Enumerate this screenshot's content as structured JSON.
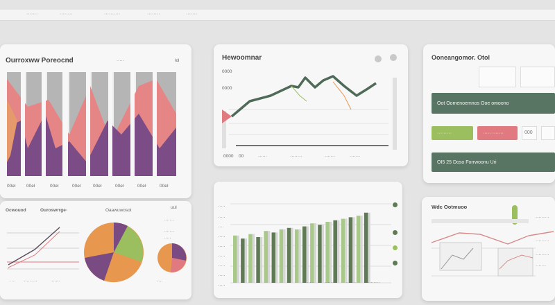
{
  "topbar": {
    "items": [
      "·······",
      "········",
      "··········",
      "········",
      "·······"
    ]
  },
  "panel_a": {
    "title": "Ourroxww Poreocnd",
    "meta": "·····",
    "meta2": "lol",
    "categories": [
      "00eI",
      "00el",
      "00eI",
      "00eI",
      "00eI",
      "00eI",
      "00eI",
      "00eI"
    ],
    "colors": {
      "gray": "#a9a9a9",
      "pink": "#e07a80",
      "purple": "#7a4a82",
      "orange": "#e08a5a"
    }
  },
  "panel_a_bottom": {
    "label_left": "Ocwouod",
    "label_mid": "Ouroswrrge·",
    "label_pie": "Oaawuwosot",
    "side_labels": [
      "uul",
      "·······",
      "·······",
      "·····"
    ],
    "bottom_labels": [
      "·····",
      "·········",
      "······",
      "····"
    ],
    "pie_colors": [
      "#e8974e",
      "#9bbf5e",
      "#7a4a82",
      "#c9c9c9"
    ]
  },
  "panel_b": {
    "title": "Hewoomnar",
    "y_labels": [
      "0000",
      "0000"
    ],
    "x_labels": [
      "0000",
      "00",
      "······",
      "········",
      "·······",
      "·······"
    ],
    "line_color": "#4f6a58",
    "accent": "#e07a80"
  },
  "panel_c": {
    "title": "Ooneangomor. Otol",
    "big_button": "Oot Oomenoemnos   Ooe omoono",
    "green_button": "·········",
    "pink_button": "·····  ·······",
    "small_btn": "000",
    "bottom_button": "OI5 25  Doso Forrwoonu Uri",
    "colors": {
      "dark": "#587563",
      "green": "#9bbf5e",
      "pink": "#e07a80"
    }
  },
  "panel_d": {
    "y_labels": [
      "·····",
      "·····",
      "····",
      "·····",
      "·····",
      "·····",
      "·····",
      "·····",
      "·····",
      "·····"
    ],
    "bars": [
      0.62,
      0.58,
      0.64,
      0.6,
      0.68,
      0.66,
      0.7,
      0.72,
      0.7,
      0.74,
      0.78,
      0.76,
      0.8,
      0.82,
      0.84,
      0.86,
      0.88,
      0.92
    ],
    "dots": [
      "#5f7a55",
      "#5f7a55",
      "#9bbf5e",
      "#5f7a55"
    ],
    "bottom_labels": [
      "·······",
      "······",
      "·······",
      "········"
    ]
  },
  "panel_e": {
    "title": "Wdc Ootmuoo",
    "side_labels": [
      "·········",
      "·········",
      "·········",
      "·······"
    ],
    "colors": {
      "pink": "#d88a8a",
      "green": "#9bbf5e"
    }
  }
}
